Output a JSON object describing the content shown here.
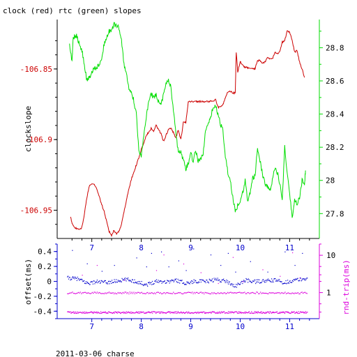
{
  "title": "clock (red) rtc (green) slopes",
  "footer": "2011-03-06 charse",
  "colors": {
    "clock": "#cc0000",
    "rtc": "#00dd00",
    "offset": "#0000cc",
    "rtt": "#dd00dd",
    "axis": "#000000"
  },
  "chart_data": [
    {
      "type": "line",
      "title": "clock (red) rtc (green) slopes",
      "xlabel": "",
      "ylabel": "clockslope",
      "y2label": "",
      "xlim": [
        6.3,
        11.6
      ],
      "ylim": [
        -106.97,
        -106.815
      ],
      "y2lim": [
        27.65,
        28.97
      ],
      "x_ticks": [
        7,
        8,
        9,
        10,
        11
      ],
      "y_ticks": [
        -106.85,
        -106.9,
        -106.95
      ],
      "y_tick_labels": [
        "-106.85",
        "-106.9",
        "-106.95"
      ],
      "y2_ticks": [
        27.8,
        28,
        28.2,
        28.4,
        28.6,
        28.8
      ],
      "y2_tick_labels": [
        "27.8",
        "28",
        "28.2",
        "28.4",
        "28.6",
        "28.8"
      ],
      "series": [
        {
          "name": "clock",
          "axis": "left",
          "x": [
            6.57,
            6.6,
            6.65,
            6.7,
            6.75,
            6.8,
            6.85,
            6.9,
            6.95,
            7.0,
            7.05,
            7.1,
            7.15,
            7.2,
            7.25,
            7.3,
            7.35,
            7.4,
            7.45,
            7.5,
            7.55,
            7.6,
            7.65,
            7.7,
            7.75,
            7.8,
            7.85,
            7.9,
            7.95,
            8.0,
            8.05,
            8.1,
            8.15,
            8.2,
            8.25,
            8.3,
            8.35,
            8.4,
            8.45,
            8.5,
            8.55,
            8.6,
            8.65,
            8.7,
            8.75,
            8.8,
            8.85,
            8.9,
            8.95,
            9.0,
            9.05,
            9.1,
            9.15,
            9.2,
            9.25,
            9.3,
            9.35,
            9.4,
            9.45,
            9.5,
            9.55,
            9.6,
            9.65,
            9.7,
            9.75,
            9.8,
            9.85,
            9.9,
            9.92,
            9.95,
            10.0,
            10.05,
            10.1,
            10.15,
            10.2,
            10.25,
            10.3,
            10.35,
            10.4,
            10.45,
            10.5,
            10.55,
            10.6,
            10.65,
            10.7,
            10.75,
            10.8,
            10.85,
            10.9,
            10.95,
            11.0,
            11.05,
            11.1,
            11.15,
            11.2,
            11.25,
            11.3
          ],
          "y": [
            -106.955,
            -106.959,
            -106.962,
            -106.963,
            -106.964,
            -106.962,
            -106.953,
            -106.941,
            -106.933,
            -106.931,
            -106.932,
            -106.935,
            -106.94,
            -106.946,
            -106.951,
            -106.958,
            -106.965,
            -106.968,
            -106.964,
            -106.967,
            -106.965,
            -106.96,
            -106.951,
            -106.943,
            -106.935,
            -106.928,
            -106.923,
            -106.918,
            -106.913,
            -106.907,
            -106.902,
            -106.897,
            -106.895,
            -106.892,
            -106.894,
            -106.89,
            -106.893,
            -106.896,
            -106.901,
            -106.897,
            -106.893,
            -106.892,
            -106.895,
            -106.899,
            -106.893,
            -106.9,
            -106.888,
            -106.888,
            -106.873,
            -106.873,
            -106.873,
            -106.873,
            -106.873,
            -106.873,
            -106.873,
            -106.873,
            -106.873,
            -106.873,
            -106.873,
            -106.871,
            -106.877,
            -106.877,
            -106.875,
            -106.871,
            -106.866,
            -106.866,
            -106.867,
            -106.867,
            -106.838,
            -106.852,
            -106.845,
            -106.847,
            -106.849,
            -106.849,
            -106.85,
            -106.85,
            -106.85,
            -106.844,
            -106.844,
            -106.846,
            -106.845,
            -106.842,
            -106.843,
            -106.843,
            -106.838,
            -106.839,
            -106.838,
            -106.831,
            -106.83,
            -106.823,
            -106.824,
            -106.83,
            -106.838,
            -106.837,
            -106.845,
            -106.85,
            -106.856
          ]
        },
        {
          "name": "rtc",
          "axis": "right",
          "x": [
            6.55,
            6.6,
            6.62,
            6.65,
            6.7,
            6.75,
            6.8,
            6.85,
            6.9,
            6.95,
            7.0,
            7.05,
            7.1,
            7.15,
            7.2,
            7.25,
            7.3,
            7.35,
            7.4,
            7.45,
            7.5,
            7.55,
            7.6,
            7.65,
            7.7,
            7.75,
            7.8,
            7.85,
            7.9,
            7.95,
            8.0,
            8.05,
            8.1,
            8.15,
            8.2,
            8.25,
            8.3,
            8.35,
            8.4,
            8.45,
            8.5,
            8.55,
            8.6,
            8.65,
            8.7,
            8.75,
            8.8,
            8.85,
            8.9,
            8.95,
            9.0,
            9.05,
            9.1,
            9.15,
            9.2,
            9.25,
            9.3,
            9.35,
            9.4,
            9.45,
            9.5,
            9.55,
            9.6,
            9.65,
            9.7,
            9.75,
            9.8,
            9.85,
            9.9,
            9.95,
            10.0,
            10.05,
            10.1,
            10.15,
            10.2,
            10.25,
            10.3,
            10.35,
            10.4,
            10.45,
            10.5,
            10.55,
            10.6,
            10.65,
            10.7,
            10.75,
            10.8,
            10.85,
            10.9,
            10.95,
            11.0,
            11.05,
            11.1,
            11.15,
            11.2,
            11.25,
            11.3,
            11.32
          ],
          "y": [
            28.82,
            28.72,
            28.85,
            28.87,
            28.87,
            28.82,
            28.78,
            28.7,
            28.6,
            28.62,
            28.65,
            28.68,
            28.68,
            28.7,
            28.74,
            28.82,
            28.86,
            28.9,
            28.91,
            28.94,
            28.93,
            28.92,
            28.84,
            28.7,
            28.64,
            28.55,
            28.52,
            28.48,
            28.4,
            28.18,
            28.15,
            28.27,
            28.38,
            28.48,
            28.52,
            28.5,
            28.52,
            28.48,
            28.46,
            28.52,
            28.58,
            28.6,
            28.56,
            28.42,
            28.28,
            28.17,
            28.17,
            28.12,
            28.07,
            28.1,
            28.16,
            28.12,
            28.18,
            28.12,
            28.13,
            28.15,
            28.3,
            28.35,
            28.38,
            28.44,
            28.45,
            28.4,
            28.34,
            28.3,
            28.14,
            28.05,
            28.0,
            27.9,
            27.82,
            27.85,
            27.88,
            27.92,
            28.0,
            27.88,
            27.92,
            28.02,
            28.02,
            28.2,
            28.12,
            28.04,
            27.98,
            27.96,
            27.94,
            28.0,
            28.08,
            28.05,
            27.98,
            27.87,
            28.2,
            28.05,
            27.92,
            27.78,
            27.88,
            27.86,
            27.9,
            28.0,
            27.98,
            28.06
          ]
        }
      ]
    },
    {
      "type": "scatter",
      "xlabel": "",
      "ylabel": "offset(ms)",
      "y2label": "rnd-trip(ms)",
      "xlim": [
        6.3,
        11.6
      ],
      "ylim": [
        -0.5,
        0.5
      ],
      "y2lim_log": [
        0.2,
        20
      ],
      "y2_scale": "log",
      "x_ticks": [
        7,
        8,
        9,
        10,
        11
      ],
      "y_ticks": [
        0.4,
        0.2,
        0,
        -0.2,
        -0.4
      ],
      "y_tick_labels": [
        "0.4",
        "0.2",
        "0",
        "-0.2",
        "-0.4"
      ],
      "y2_ticks": [
        1,
        10
      ],
      "y2_tick_labels": [
        "1",
        "10"
      ],
      "series": [
        {
          "name": "offset",
          "axis": "left",
          "x_range": [
            6.5,
            11.35
          ],
          "band": {
            "x": [
              6.5,
              6.7,
              6.9,
              7.1,
              7.3,
              7.5,
              7.7,
              7.9,
              8.1,
              8.3,
              8.5,
              8.7,
              8.9,
              9.1,
              9.3,
              9.5,
              9.7,
              9.9,
              10.1,
              10.3,
              10.5,
              10.7,
              10.9,
              11.1,
              11.3
            ],
            "y": [
              0.05,
              0.04,
              -0.02,
              0.0,
              -0.01,
              0.01,
              0.03,
              0.0,
              -0.04,
              0.01,
              0.0,
              0.02,
              -0.02,
              0.01,
              0.0,
              0.03,
              0.01,
              -0.06,
              0.02,
              0.0,
              0.01,
              0.02,
              -0.01,
              0.02,
              0.04
            ]
          },
          "outliers": [
            [
              6.6,
              0.42
            ],
            [
              6.9,
              0.24
            ],
            [
              7.2,
              0.14
            ],
            [
              7.45,
              0.22
            ],
            [
              7.9,
              0.32
            ],
            [
              8.1,
              0.2
            ],
            [
              8.2,
              0.38
            ],
            [
              8.4,
              0.4
            ],
            [
              8.55,
              0.2
            ],
            [
              8.75,
              0.28
            ],
            [
              8.9,
              0.15
            ],
            [
              9.05,
              0.44
            ],
            [
              9.4,
              0.36
            ],
            [
              9.6,
              0.22
            ],
            [
              9.75,
              0.38
            ],
            [
              9.9,
              0.13
            ],
            [
              10.2,
              0.27
            ],
            [
              10.55,
              0.13
            ],
            [
              10.9,
              0.4
            ],
            [
              11.1,
              0.22
            ],
            [
              11.25,
              0.38
            ]
          ]
        },
        {
          "name": "rnd-trip",
          "axis": "right",
          "x_range": [
            6.5,
            11.35
          ],
          "levels": [
            1.0,
            0.3
          ],
          "outliers": [
            [
              6.8,
              3.0
            ],
            [
              7.1,
              5.5
            ],
            [
              7.65,
              2.2
            ],
            [
              8.3,
              4.0
            ],
            [
              8.45,
              10.5
            ],
            [
              8.85,
              6.0
            ],
            [
              9.2,
              3.5
            ],
            [
              9.55,
              1.8
            ],
            [
              9.85,
              9.0
            ],
            [
              10.05,
              2.0
            ],
            [
              10.45,
              4.2
            ],
            [
              10.8,
              2.8
            ],
            [
              11.05,
              12.0
            ],
            [
              11.2,
              2.5
            ]
          ]
        }
      ]
    }
  ]
}
